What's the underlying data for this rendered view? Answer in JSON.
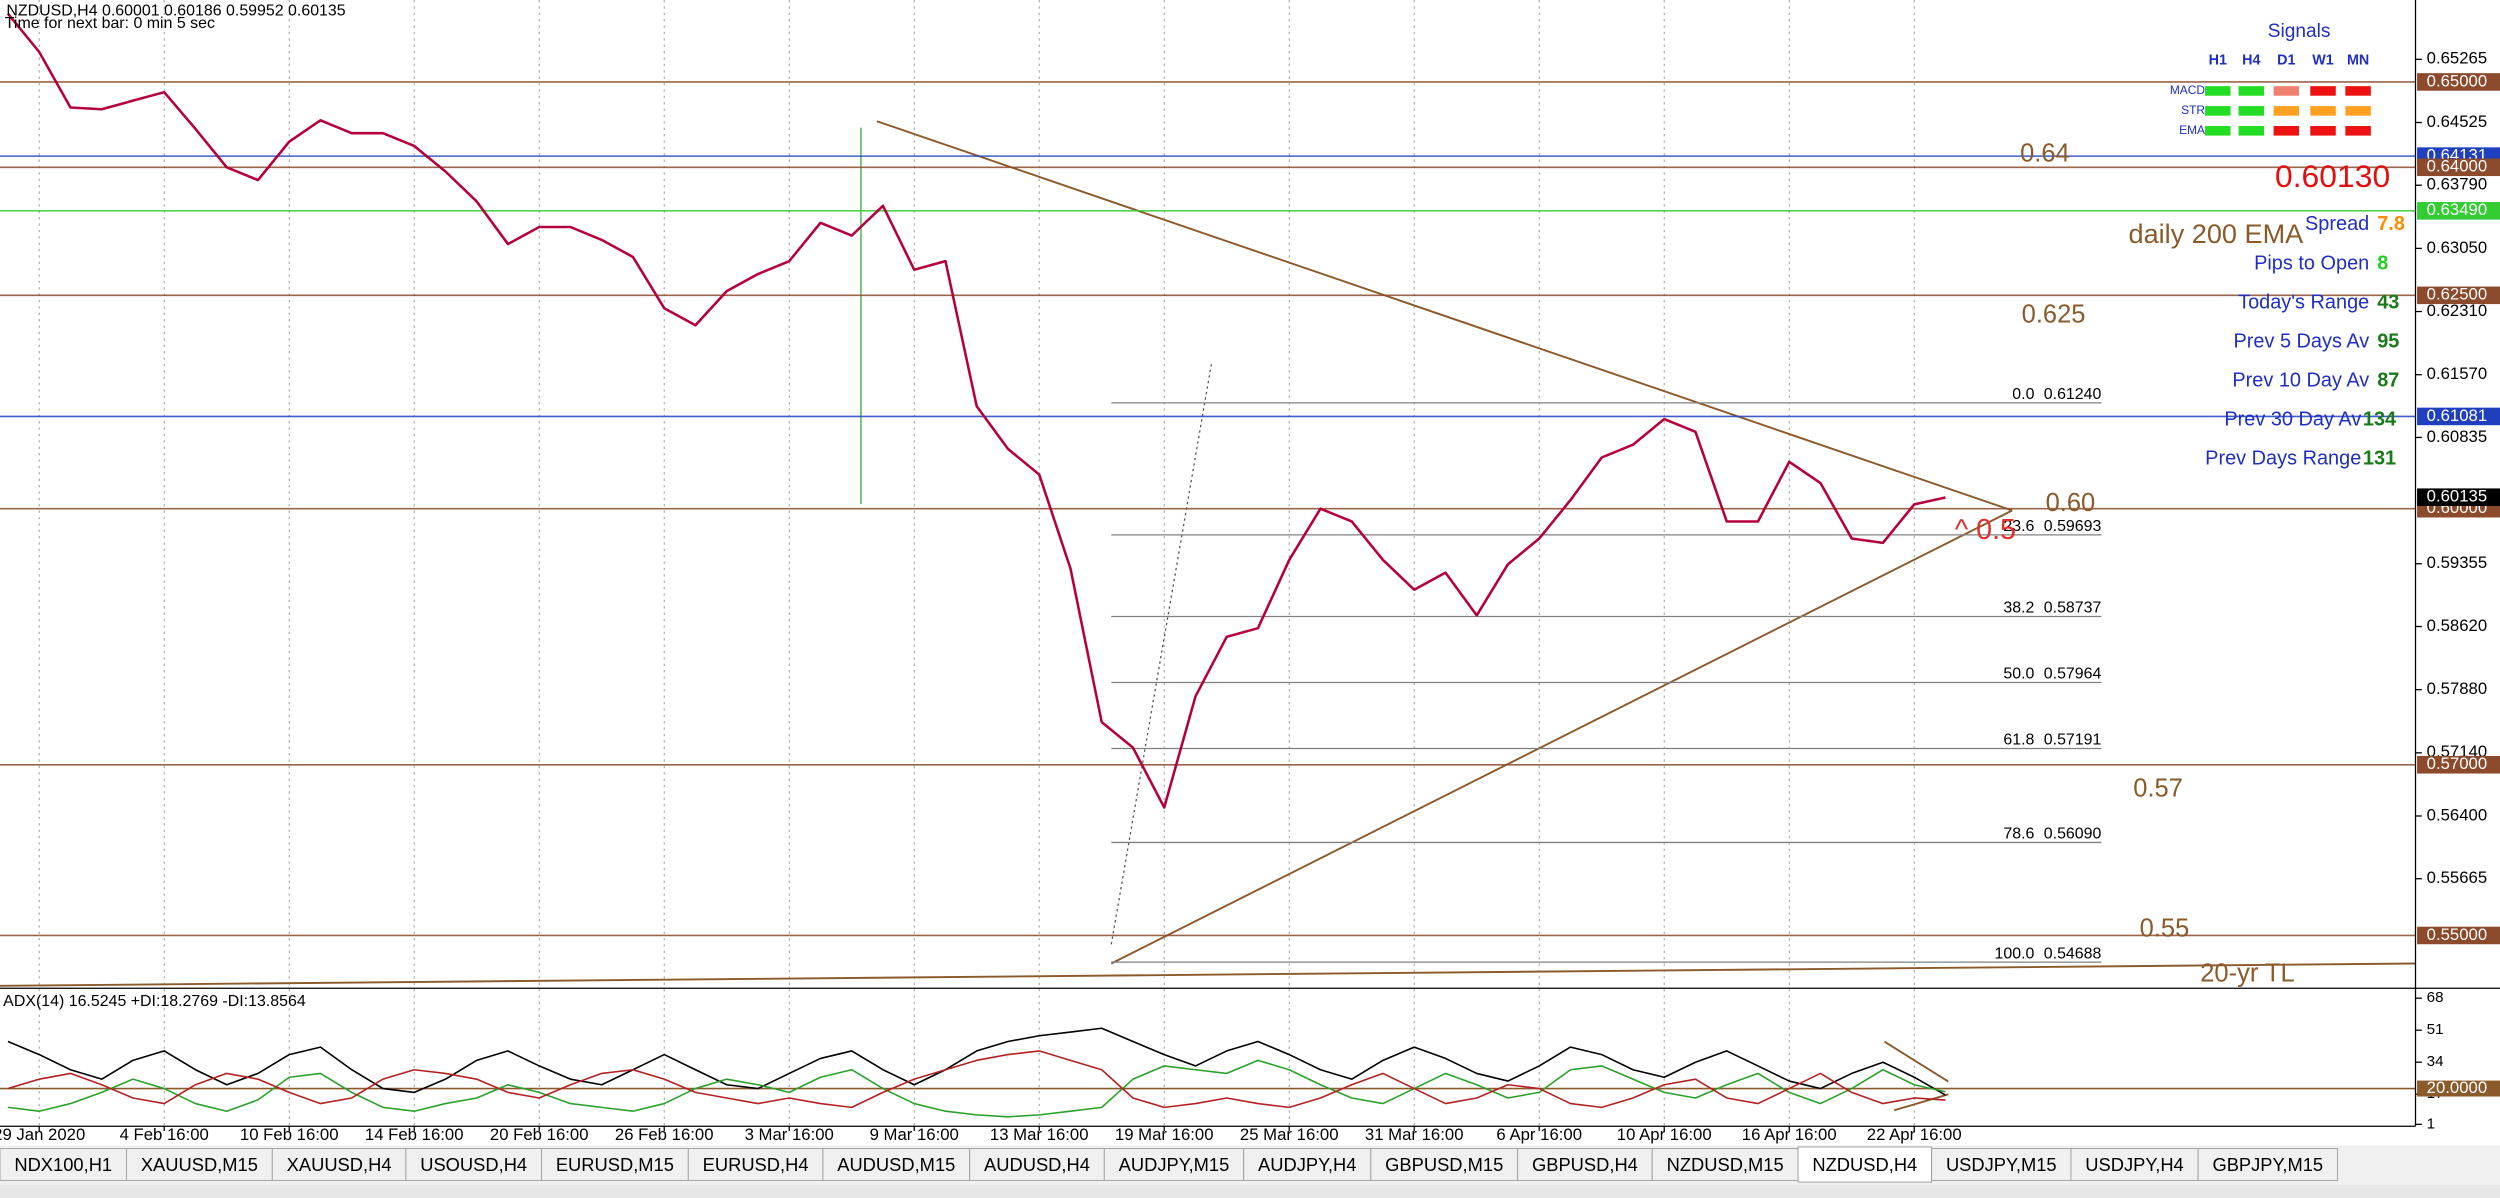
{
  "window": {
    "title": "NZDUSD,H4  0.60001 0.60186 0.59952 0.60135",
    "timer": "Time for next bar: 0 min 5 sec"
  },
  "chart_data": [
    {
      "type": "line",
      "categories": [
        null,
        "29 Jan 2020",
        null,
        null,
        null,
        "4 Feb 16:00",
        null,
        null,
        null,
        "10 Feb 16:00",
        null,
        null,
        null,
        "14 Feb 16:00",
        null,
        null,
        null,
        "20 Feb 16:00",
        null,
        null,
        null,
        "26 Feb 16:00",
        null,
        null,
        null,
        "3 Mar 16:00",
        null,
        null,
        null,
        "9 Mar 16:00",
        null,
        null,
        null,
        "13 Mar 16:00",
        null,
        null,
        null,
        "19 Mar 16:00",
        null,
        null,
        null,
        "25 Mar 16:00",
        null,
        null,
        null,
        "31 Mar 16:00",
        null,
        null,
        null,
        "6 Apr 16:00",
        null,
        null,
        null,
        "10 Apr 16:00",
        null,
        null,
        null,
        "16 Apr 16:00",
        null,
        null,
        null,
        "22 Apr 16:00",
        null
      ],
      "values": [
        0.658,
        0.6535,
        0.647,
        0.6468,
        0.6478,
        0.6488,
        0.6445,
        0.64,
        0.6385,
        0.643,
        0.6455,
        0.644,
        0.644,
        0.6425,
        0.6395,
        0.636,
        0.631,
        0.633,
        0.633,
        0.6315,
        0.6295,
        0.6235,
        0.6215,
        0.6255,
        0.6275,
        0.629,
        0.6335,
        0.632,
        0.6355,
        0.628,
        0.629,
        0.612,
        0.607,
        0.604,
        0.593,
        0.575,
        0.572,
        0.565,
        0.578,
        0.585,
        0.586,
        0.594,
        0.6,
        0.5985,
        0.594,
        0.5905,
        0.5925,
        0.5875,
        0.5935,
        0.5965,
        0.601,
        0.606,
        0.6075,
        0.6105,
        0.609,
        0.5985,
        0.5985,
        0.6055,
        0.603,
        0.5965,
        0.596,
        0.6005,
        0.6013
      ],
      "color": "#b5003c",
      "ylim": [
        0.5441,
        0.6596
      ],
      "yticks": [
        0.65265,
        0.64525,
        {
          "value": 0.6379,
          "label": "0.63790"
        },
        {
          "value": 0.6305,
          "label": "0.63050"
        },
        {
          "value": 0.6231,
          "label": "0.62310"
        },
        {
          "value": 0.6157,
          "label": "0.61570"
        },
        0.60835,
        0.59355,
        {
          "value": 0.5862,
          "label": "0.58620"
        },
        {
          "value": 0.5788,
          "label": "0.57880"
        },
        {
          "value": 0.5714,
          "label": "0.57140"
        },
        {
          "value": 0.564,
          "label": "0.56400"
        },
        0.55665
      ],
      "grid": true,
      "levels": [
        {
          "value": 0.65,
          "label": "0.65000",
          "color": "#8b4a2b"
        },
        {
          "value": 0.64131,
          "label": "0.64131",
          "color": "#1f3fbf"
        },
        {
          "value": 0.64,
          "label": "0.64000",
          "color": "#8b4a2b"
        },
        {
          "value": 0.6349,
          "label": "0.63490",
          "color": "#33cc33"
        },
        {
          "value": 0.625,
          "label": "0.62500",
          "color": "#8b4a2b"
        },
        {
          "value": 0.61081,
          "label": "0.61081",
          "color": "#1f3fbf"
        },
        {
          "value": 0.6,
          "label": "0.60000",
          "color": "#8b4a2b"
        },
        {
          "value": 0.57,
          "label": "0.57000",
          "color": "#8b4a2b"
        },
        {
          "value": 0.55,
          "label": "0.55000",
          "color": "#8b4a2b"
        }
      ],
      "current_price": {
        "value": 0.60135,
        "label": "0.60135",
        "color": "#000000"
      },
      "bid": "0.60130",
      "fibonacci": [
        {
          "level": "0.0",
          "price": 0.6124,
          "price_label": "0.61240"
        },
        {
          "level": "23.6",
          "price": 0.59693,
          "price_label": "0.59693"
        },
        {
          "level": "38.2",
          "price": 0.58737,
          "price_label": "0.58737"
        },
        {
          "level": "50.0",
          "price": 0.57964,
          "price_label": "0.57964"
        },
        {
          "level": "61.8",
          "price": 0.57191,
          "price_label": "0.57191"
        },
        {
          "level": "78.6",
          "price": 0.5609,
          "price_label": "0.56090"
        },
        {
          "level": "100.0",
          "price": 0.54688,
          "price_label": "0.54688"
        }
      ],
      "annotations": [
        "0.64",
        "0.625",
        "0.60",
        "0.57",
        "0.55",
        "20-yr TL",
        "daily 200 EMA",
        "^ 0.5"
      ]
    },
    {
      "type": "line",
      "title": "ADX(14) 16.5245 +DI:18.2769 -DI:13.8564",
      "ylim": [
        0,
        72
      ],
      "yticks": [
        68,
        51,
        34,
        17,
        1
      ],
      "level": {
        "value": 20,
        "label": "20.0000"
      },
      "series": [
        {
          "color": "#000000",
          "values": [
            45,
            38,
            30,
            25,
            35,
            40,
            30,
            22,
            28,
            38,
            42,
            30,
            20,
            18,
            25,
            35,
            40,
            32,
            25,
            22,
            30,
            38,
            30,
            22,
            20,
            28,
            36,
            40,
            30,
            22,
            30,
            40,
            45,
            48,
            50,
            52,
            45,
            38,
            32,
            40,
            45,
            38,
            30,
            25,
            35,
            42,
            36,
            28,
            24,
            32,
            42,
            38,
            30,
            26,
            34,
            40,
            32,
            24,
            20,
            28,
            34,
            26,
            16.5
          ]
        },
        {
          "color": "#2ca02c",
          "values": [
            10,
            8,
            12,
            18,
            25,
            20,
            12,
            8,
            14,
            26,
            28,
            18,
            10,
            8,
            12,
            15,
            22,
            18,
            12,
            10,
            8,
            12,
            20,
            25,
            22,
            18,
            26,
            30,
            20,
            12,
            8,
            6,
            5,
            6,
            8,
            10,
            25,
            32,
            30,
            28,
            35,
            30,
            22,
            15,
            12,
            20,
            28,
            22,
            15,
            18,
            30,
            32,
            25,
            18,
            15,
            22,
            28,
            18,
            12,
            20,
            30,
            22,
            18.3
          ]
        },
        {
          "color": "#b22222",
          "values": [
            20,
            25,
            28,
            22,
            15,
            12,
            22,
            28,
            25,
            18,
            12,
            15,
            25,
            30,
            28,
            25,
            18,
            15,
            22,
            28,
            30,
            25,
            18,
            15,
            12,
            15,
            12,
            10,
            18,
            25,
            30,
            35,
            38,
            40,
            35,
            30,
            15,
            10,
            12,
            15,
            12,
            10,
            15,
            22,
            28,
            20,
            12,
            15,
            22,
            20,
            12,
            10,
            15,
            22,
            25,
            15,
            12,
            20,
            28,
            18,
            12,
            15,
            13.9
          ]
        }
      ]
    }
  ],
  "signals": {
    "title": "Signals",
    "columns": [
      "H1",
      "H4",
      "D1",
      "W1",
      "MN"
    ],
    "rows": [
      {
        "label": "MACD",
        "colors": [
          "#22dd22",
          "#22dd22",
          "#f08070",
          "#ee1111",
          "#ee1111"
        ]
      },
      {
        "label": "STR",
        "colors": [
          "#22dd22",
          "#22dd22",
          "#ffa020",
          "#ffa020",
          "#ffa020"
        ]
      },
      {
        "label": "EMA",
        "colors": [
          "#22dd22",
          "#22dd22",
          "#ee1111",
          "#ee1111",
          "#ee1111"
        ]
      }
    ]
  },
  "info": [
    {
      "label": "Spread",
      "value": 7.8,
      "color": "#ff8c00"
    },
    {
      "label": "Pips to Open",
      "value": 8,
      "color": "#22cc22"
    },
    {
      "label": "Today's Range",
      "value": 43,
      "color": "#1a7a1a"
    },
    {
      "label": "Prev 5 Days Av",
      "value": 95,
      "color": "#1a7a1a"
    },
    {
      "label": "Prev 10 Day Av",
      "value": 87,
      "color": "#1a7a1a"
    },
    {
      "label": "Prev 30 Day Av",
      "value": 134,
      "color": "#1a7a1a"
    },
    {
      "label": "Prev Days Range",
      "value": 131,
      "color": "#1a7a1a"
    }
  ],
  "tabs": {
    "items": [
      "NDX100,H1",
      "XAUUSD,M15",
      "XAUUSD,H4",
      "USOUSD,H4",
      "EURUSD,M15",
      "EURUSD,H4",
      "AUDUSD,M15",
      "AUDUSD,H4",
      "AUDJPY,M15",
      "AUDJPY,H4",
      "GBPUSD,M15",
      "GBPUSD,H4",
      "NZDUSD,M15",
      "NZDUSD,H4",
      "USDJPY,M15",
      "USDJPY,H4",
      "GBPJPY,M15"
    ],
    "active": 13
  }
}
